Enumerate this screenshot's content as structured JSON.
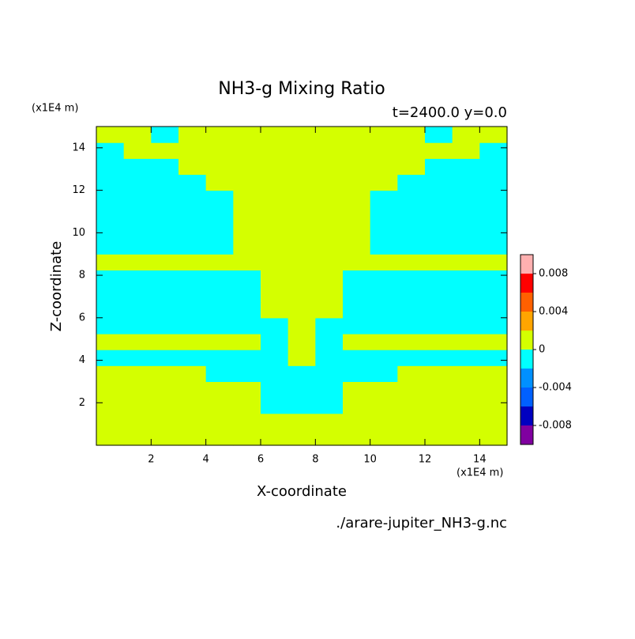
{
  "chart_data": {
    "type": "heatmap",
    "title": "NH3-g Mixing Ratio",
    "subtitle": "t=2400.0 y=0.0",
    "x_label": "X-coordinate",
    "y_label": "Z-coordinate",
    "x_unit": "(x1E4 m)",
    "y_unit": "(x1E4 m)",
    "source": "./arare-jupiter_NH3-g.nc",
    "xlim": [
      0,
      15
    ],
    "ylim": [
      0,
      15
    ],
    "xticks": [
      2,
      4,
      6,
      8,
      10,
      12,
      14
    ],
    "yticks": [
      2,
      4,
      6,
      8,
      10,
      12,
      14
    ],
    "levels": [
      -0.01,
      -0.008,
      -0.006,
      -0.004,
      -0.002,
      0,
      0.002,
      0.004,
      0.006,
      0.008,
      0.01
    ],
    "colors": [
      "#8000a0",
      "#0000c0",
      "#0060ff",
      "#0090ff",
      "#00ffff",
      "#d4ff00",
      "#ffa500",
      "#ff6000",
      "#ff0000",
      "#ffb0b0"
    ],
    "cbar_ticks": [
      -0.008,
      -0.004,
      0,
      0.004,
      0.008
    ],
    "z": [
      [
        0.001,
        0.001,
        0.001,
        0.001,
        0.001,
        0.001,
        0.001,
        0.001,
        0.001,
        0.001,
        0.001,
        0.001,
        0.001,
        0.001,
        0.001
      ],
      [
        0.001,
        0.001,
        0.001,
        0.001,
        0.001,
        0.001,
        0.001,
        0.001,
        0.001,
        0.001,
        0.001,
        0.001,
        0.001,
        0.001,
        0.001
      ],
      [
        0.001,
        0.001,
        0.001,
        0.001,
        0.001,
        0.001,
        -0.001,
        -0.001,
        -0.001,
        0.001,
        0.001,
        0.001,
        0.001,
        0.001,
        0.001
      ],
      [
        0.001,
        0.001,
        0.001,
        0.001,
        0.001,
        0.001,
        -0.001,
        -0.001,
        -0.001,
        0.001,
        0.001,
        0.001,
        0.001,
        0.001,
        0.001
      ],
      [
        0.001,
        0.001,
        0.001,
        0.001,
        -0.001,
        -0.001,
        -0.001,
        -0.001,
        -0.001,
        -0.001,
        -0.001,
        0.001,
        0.001,
        0.001,
        0.001
      ],
      [
        -0.001,
        -0.001,
        -0.001,
        -0.001,
        -0.001,
        -0.001,
        -0.001,
        0.001,
        -0.001,
        -0.001,
        -0.001,
        -0.001,
        -0.001,
        -0.001,
        -0.001
      ],
      [
        0.001,
        0.001,
        0.001,
        0.001,
        0.001,
        0.001,
        -0.001,
        0.001,
        -0.001,
        0.001,
        0.001,
        0.001,
        0.001,
        0.001,
        0.001
      ],
      [
        -0.001,
        -0.001,
        -0.001,
        -0.001,
        -0.001,
        -0.001,
        -0.001,
        0.001,
        -0.001,
        -0.001,
        -0.001,
        -0.001,
        -0.001,
        -0.001,
        -0.001
      ],
      [
        -0.001,
        -0.001,
        -0.001,
        -0.001,
        -0.001,
        -0.001,
        0.001,
        0.001,
        0.001,
        -0.001,
        -0.001,
        -0.001,
        -0.001,
        -0.001,
        -0.001
      ],
      [
        -0.001,
        -0.001,
        -0.001,
        -0.001,
        -0.001,
        -0.001,
        0.001,
        0.001,
        0.001,
        -0.001,
        -0.001,
        -0.001,
        -0.001,
        -0.001,
        -0.001
      ],
      [
        -0.001,
        -0.001,
        -0.001,
        -0.001,
        -0.001,
        -0.001,
        0.001,
        0.001,
        0.001,
        -0.001,
        -0.001,
        -0.001,
        -0.001,
        -0.001,
        -0.001
      ],
      [
        0.001,
        0.001,
        0.001,
        0.001,
        0.001,
        0.001,
        0.001,
        0.001,
        0.001,
        0.001,
        0.001,
        0.001,
        0.001,
        0.001,
        0.001
      ],
      [
        -0.001,
        -0.001,
        -0.001,
        -0.001,
        -0.001,
        0.001,
        0.001,
        0.001,
        0.001,
        0.001,
        -0.001,
        -0.001,
        -0.001,
        -0.001,
        -0.001
      ],
      [
        -0.001,
        -0.001,
        -0.001,
        -0.001,
        -0.001,
        0.001,
        0.001,
        0.001,
        0.001,
        0.001,
        -0.001,
        -0.001,
        -0.001,
        -0.001,
        -0.001
      ],
      [
        -0.001,
        -0.001,
        -0.001,
        -0.001,
        -0.001,
        0.001,
        0.001,
        0.001,
        0.001,
        0.001,
        -0.001,
        -0.001,
        -0.001,
        -0.001,
        -0.001
      ],
      [
        -0.001,
        -0.001,
        -0.001,
        -0.001,
        -0.001,
        0.001,
        0.001,
        0.001,
        0.001,
        0.001,
        -0.001,
        -0.001,
        -0.001,
        -0.001,
        -0.001
      ],
      [
        -0.001,
        -0.001,
        -0.001,
        -0.001,
        0.001,
        0.001,
        0.001,
        0.001,
        0.001,
        0.001,
        0.001,
        -0.001,
        -0.001,
        -0.001,
        -0.001
      ],
      [
        -0.001,
        -0.001,
        -0.001,
        0.001,
        0.001,
        0.001,
        0.001,
        0.001,
        0.001,
        0.001,
        0.001,
        0.001,
        -0.001,
        -0.001,
        -0.001
      ],
      [
        -0.001,
        0.001,
        0.001,
        0.001,
        0.001,
        0.001,
        0.001,
        0.001,
        0.001,
        0.001,
        0.001,
        0.001,
        0.001,
        0.001,
        -0.001
      ],
      [
        0.001,
        0.001,
        -0.001,
        0.001,
        0.001,
        0.001,
        0.001,
        0.001,
        0.001,
        0.001,
        0.001,
        0.001,
        -0.001,
        0.001,
        0.001
      ]
    ]
  }
}
